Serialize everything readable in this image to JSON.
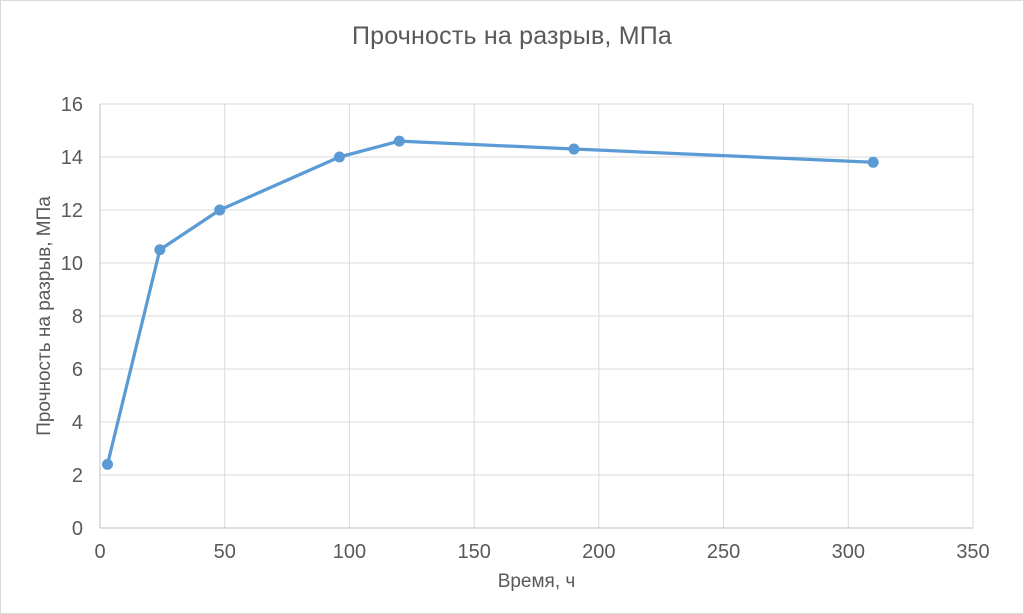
{
  "chart_data": {
    "type": "line",
    "title": "Прочность на разрыв, МПа",
    "xlabel": "Время, ч",
    "ylabel": "Прочность на разрыв, МПа",
    "x": [
      3,
      24,
      48,
      96,
      120,
      190,
      310
    ],
    "y": [
      2.4,
      10.5,
      12,
      14,
      14.6,
      14.3,
      13.8
    ],
    "xlim": [
      0,
      350
    ],
    "ylim": [
      0,
      16
    ],
    "xtick_step": 50,
    "ytick_step": 2,
    "grid": true,
    "legend": "none",
    "colors": {
      "line": "#5B9BD5",
      "marker": "#5B9BD5",
      "text": "#595959",
      "gridline": "#D9D9D9",
      "axis_line": "#BFBFBF",
      "background": "#FFFFFF",
      "border": "#D9D9D9"
    }
  }
}
